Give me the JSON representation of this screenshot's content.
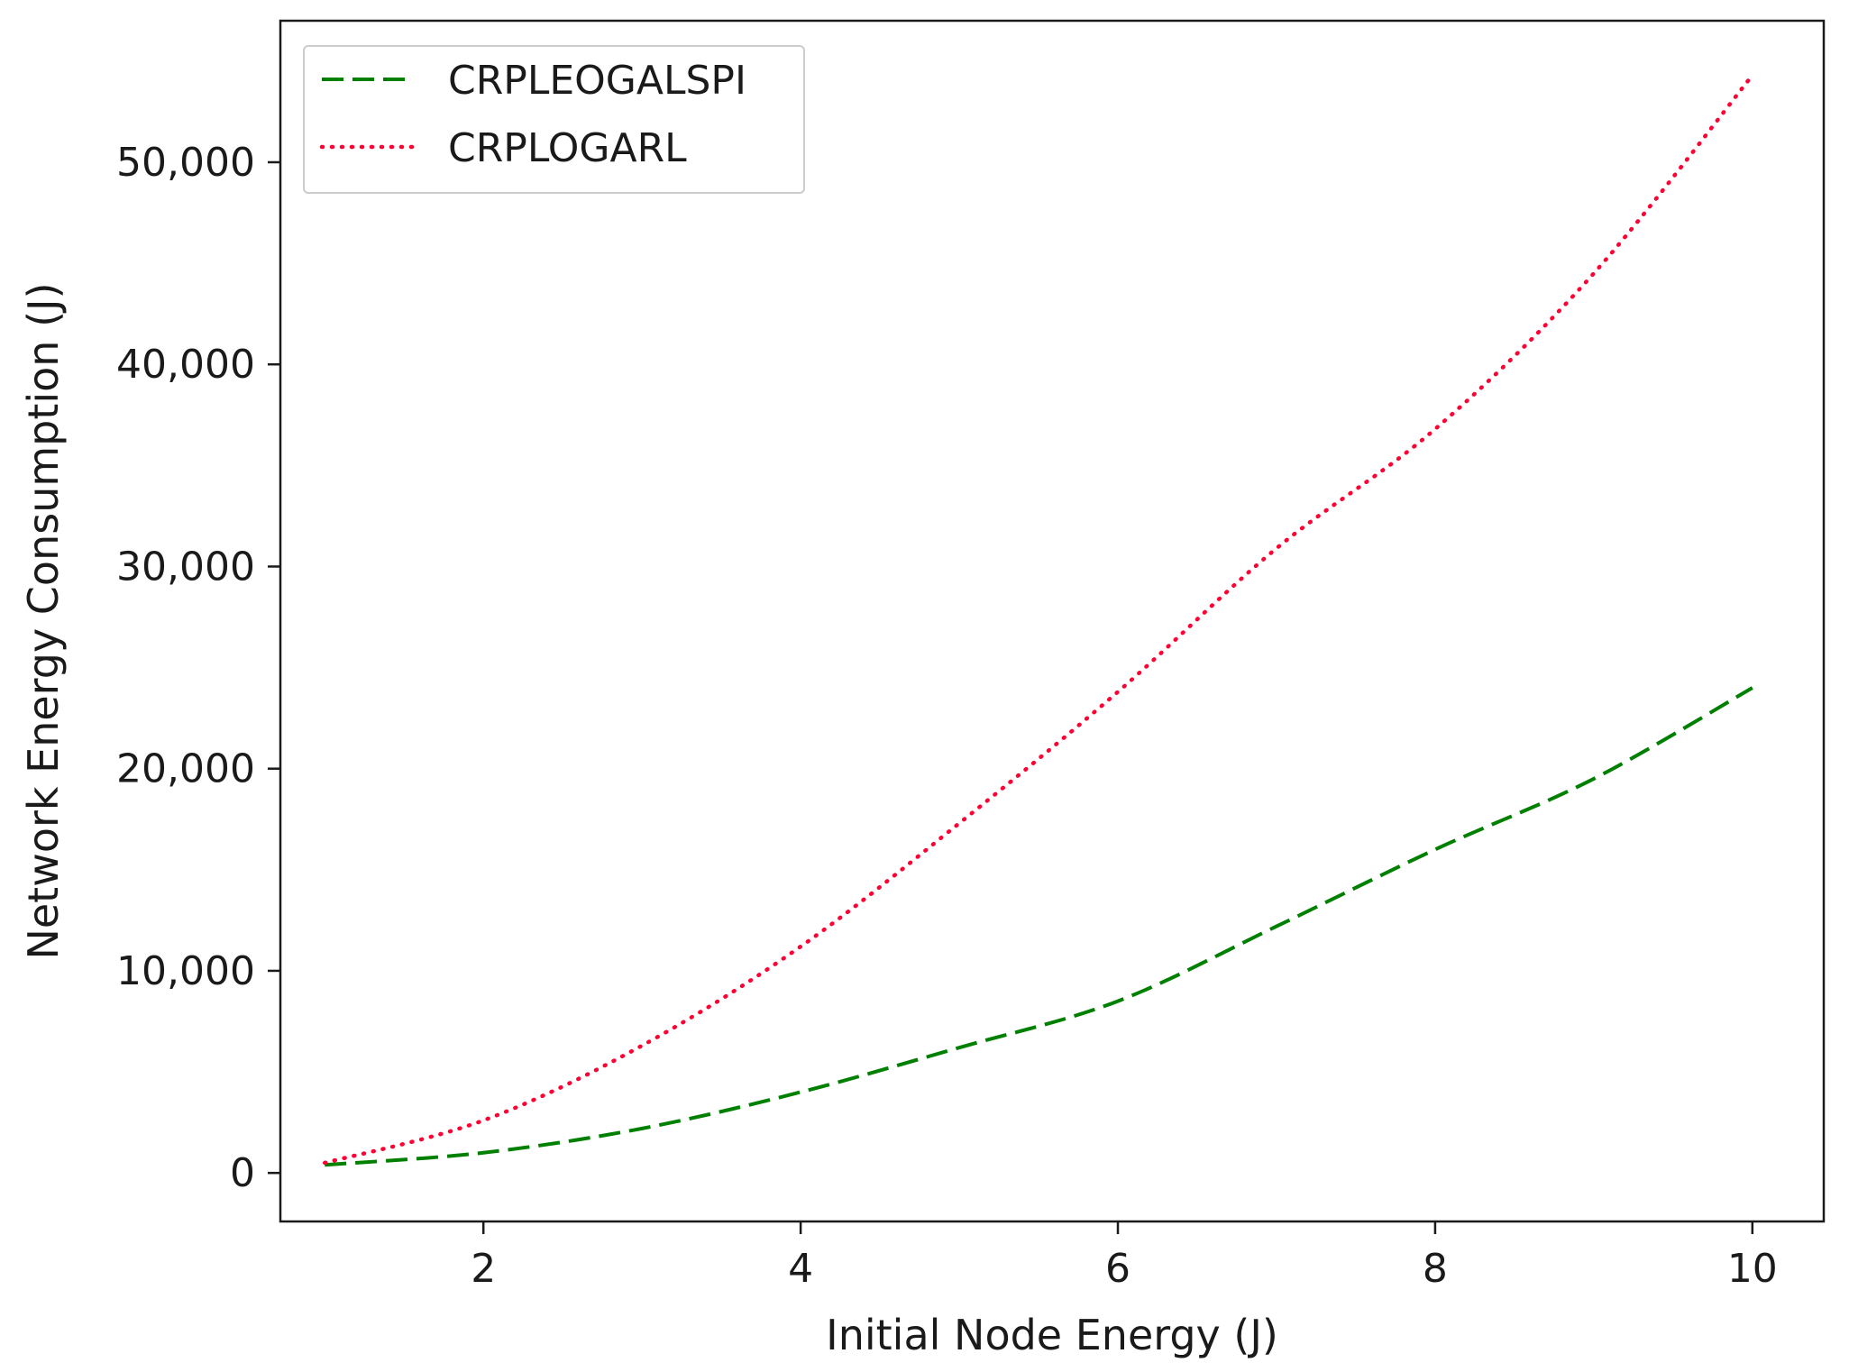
{
  "chart_data": {
    "type": "line",
    "title": "",
    "xlabel": "Initial Node Energy (J)",
    "ylabel": "Network Energy Consumption (J)",
    "xlim": [
      0.72,
      10.45
    ],
    "ylim": [
      -2400,
      57000
    ],
    "x_ticks": [
      2,
      4,
      6,
      8,
      10
    ],
    "x_tick_labels": [
      "2",
      "4",
      "6",
      "8",
      "10"
    ],
    "y_ticks": [
      0,
      10000,
      20000,
      30000,
      40000,
      50000
    ],
    "y_tick_labels": [
      "0",
      "10,000",
      "20,000",
      "30,000",
      "40,000",
      "50,000"
    ],
    "grid": false,
    "legend_position": "top-left",
    "series": [
      {
        "name": "CRPLEOGALSPI",
        "color": "#008000",
        "style": "dashed",
        "x": [
          1,
          2,
          3,
          4,
          5,
          6,
          7,
          8,
          9,
          10
        ],
        "values": [
          400,
          1000,
          2200,
          4000,
          6200,
          8500,
          12200,
          16000,
          19500,
          24000
        ]
      },
      {
        "name": "CRPLOGARL",
        "color": "#ff0033",
        "style": "dotted",
        "x": [
          1,
          2,
          3,
          4,
          5,
          6,
          7,
          8,
          9,
          10
        ],
        "values": [
          500,
          2600,
          6300,
          11200,
          17300,
          23800,
          30900,
          36800,
          44500,
          54300
        ]
      }
    ]
  }
}
